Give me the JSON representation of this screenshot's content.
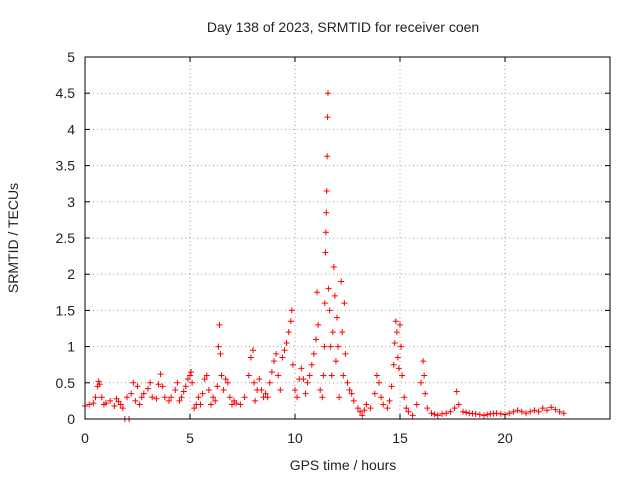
{
  "chart_data": {
    "type": "scatter",
    "title": "Day 138 of 2023, SRMTID for receiver coen",
    "xlabel": "GPS time / hours",
    "ylabel": "SRMTID / TECUs",
    "xlim": [
      0,
      25
    ],
    "ylim": [
      0,
      5
    ],
    "xticks": [
      0,
      5,
      10,
      15,
      20
    ],
    "xtick_labels": [
      "0",
      "5",
      "10",
      "15",
      "20"
    ],
    "yticks": [
      0,
      0.5,
      1,
      1.5,
      2,
      2.5,
      3,
      3.5,
      4,
      4.5,
      5
    ],
    "ytick_labels": [
      "0",
      "0.5",
      "1",
      "1.5",
      "2",
      "2.5",
      "3",
      "3.5",
      "4",
      "4.5",
      "5"
    ],
    "grid": true,
    "marker": "+",
    "color": "#ff0000",
    "series": [
      {
        "name": "SRMTID",
        "points": [
          [
            0.0,
            0.18
          ],
          [
            0.2,
            0.2
          ],
          [
            0.4,
            0.22
          ],
          [
            0.5,
            0.3
          ],
          [
            0.6,
            0.45
          ],
          [
            0.65,
            0.52
          ],
          [
            0.7,
            0.48
          ],
          [
            0.8,
            0.3
          ],
          [
            0.9,
            0.2
          ],
          [
            1.0,
            0.22
          ],
          [
            1.2,
            0.25
          ],
          [
            1.4,
            0.18
          ],
          [
            1.5,
            0.28
          ],
          [
            1.6,
            0.24
          ],
          [
            1.7,
            0.2
          ],
          [
            1.8,
            0.15
          ],
          [
            1.9,
            0.0
          ],
          [
            2.1,
            0.0
          ],
          [
            2.0,
            0.3
          ],
          [
            2.2,
            0.35
          ],
          [
            2.3,
            0.5
          ],
          [
            2.4,
            0.25
          ],
          [
            2.5,
            0.45
          ],
          [
            2.6,
            0.2
          ],
          [
            2.7,
            0.3
          ],
          [
            2.8,
            0.35
          ],
          [
            3.0,
            0.42
          ],
          [
            3.1,
            0.5
          ],
          [
            3.2,
            0.3
          ],
          [
            3.4,
            0.28
          ],
          [
            3.5,
            0.48
          ],
          [
            3.6,
            0.62
          ],
          [
            3.7,
            0.45
          ],
          [
            3.8,
            0.3
          ],
          [
            4.0,
            0.25
          ],
          [
            4.1,
            0.3
          ],
          [
            4.3,
            0.4
          ],
          [
            4.4,
            0.5
          ],
          [
            4.5,
            0.25
          ],
          [
            4.6,
            0.3
          ],
          [
            4.7,
            0.38
          ],
          [
            4.8,
            0.45
          ],
          [
            4.9,
            0.55
          ],
          [
            5.0,
            0.6
          ],
          [
            5.05,
            0.65
          ],
          [
            5.1,
            0.5
          ],
          [
            5.2,
            0.15
          ],
          [
            5.3,
            0.2
          ],
          [
            5.4,
            0.3
          ],
          [
            5.5,
            0.2
          ],
          [
            5.6,
            0.35
          ],
          [
            5.7,
            0.55
          ],
          [
            5.8,
            0.6
          ],
          [
            5.9,
            0.4
          ],
          [
            6.0,
            0.2
          ],
          [
            6.1,
            0.3
          ],
          [
            6.2,
            0.25
          ],
          [
            6.3,
            0.45
          ],
          [
            6.35,
            1.0
          ],
          [
            6.4,
            1.3
          ],
          [
            6.45,
            0.9
          ],
          [
            6.5,
            0.6
          ],
          [
            6.6,
            0.4
          ],
          [
            6.7,
            0.55
          ],
          [
            6.8,
            0.5
          ],
          [
            6.9,
            0.3
          ],
          [
            7.0,
            0.2
          ],
          [
            7.1,
            0.25
          ],
          [
            7.2,
            0.22
          ],
          [
            7.4,
            0.2
          ],
          [
            7.6,
            0.3
          ],
          [
            7.8,
            0.6
          ],
          [
            7.9,
            0.85
          ],
          [
            8.0,
            0.95
          ],
          [
            8.05,
            0.5
          ],
          [
            8.1,
            0.25
          ],
          [
            8.2,
            0.4
          ],
          [
            8.3,
            0.55
          ],
          [
            8.4,
            0.4
          ],
          [
            8.5,
            0.3
          ],
          [
            8.6,
            0.35
          ],
          [
            8.7,
            0.3
          ],
          [
            8.8,
            0.5
          ],
          [
            8.9,
            0.65
          ],
          [
            9.0,
            0.8
          ],
          [
            9.1,
            0.9
          ],
          [
            9.2,
            0.6
          ],
          [
            9.3,
            0.4
          ],
          [
            9.4,
            0.85
          ],
          [
            9.5,
            0.95
          ],
          [
            9.6,
            1.05
          ],
          [
            9.7,
            1.2
          ],
          [
            9.8,
            1.35
          ],
          [
            9.85,
            1.5
          ],
          [
            9.9,
            0.75
          ],
          [
            10.0,
            0.4
          ],
          [
            10.1,
            0.3
          ],
          [
            10.2,
            0.55
          ],
          [
            10.3,
            0.7
          ],
          [
            10.4,
            0.55
          ],
          [
            10.5,
            0.35
          ],
          [
            10.6,
            0.5
          ],
          [
            10.7,
            0.6
          ],
          [
            10.8,
            0.75
          ],
          [
            10.9,
            0.9
          ],
          [
            11.0,
            1.1
          ],
          [
            11.05,
            1.75
          ],
          [
            11.1,
            1.3
          ],
          [
            11.2,
            0.4
          ],
          [
            11.3,
            0.3
          ],
          [
            11.35,
            0.6
          ],
          [
            11.4,
            1.0
          ],
          [
            11.42,
            1.6
          ],
          [
            11.45,
            2.3
          ],
          [
            11.47,
            2.58
          ],
          [
            11.49,
            2.85
          ],
          [
            11.51,
            3.15
          ],
          [
            11.53,
            3.63
          ],
          [
            11.55,
            4.17
          ],
          [
            11.57,
            4.5
          ],
          [
            11.6,
            1.8
          ],
          [
            11.65,
            1.5
          ],
          [
            11.7,
            1.0
          ],
          [
            11.75,
            0.6
          ],
          [
            11.8,
            1.2
          ],
          [
            11.85,
            2.1
          ],
          [
            11.9,
            1.7
          ],
          [
            11.95,
            0.8
          ],
          [
            12.0,
            1.4
          ],
          [
            12.05,
            1.0
          ],
          [
            12.1,
            0.3
          ],
          [
            12.2,
            1.9
          ],
          [
            12.25,
            1.2
          ],
          [
            12.3,
            0.6
          ],
          [
            12.35,
            1.6
          ],
          [
            12.4,
            0.9
          ],
          [
            12.5,
            0.5
          ],
          [
            12.6,
            0.4
          ],
          [
            12.7,
            0.35
          ],
          [
            12.8,
            0.25
          ],
          [
            13.0,
            0.15
          ],
          [
            13.1,
            0.1
          ],
          [
            13.2,
            0.05
          ],
          [
            13.3,
            0.12
          ],
          [
            13.4,
            0.2
          ],
          [
            13.6,
            0.15
          ],
          [
            13.8,
            0.35
          ],
          [
            13.9,
            0.6
          ],
          [
            14.0,
            0.5
          ],
          [
            14.1,
            0.3
          ],
          [
            14.2,
            0.2
          ],
          [
            14.4,
            0.15
          ],
          [
            14.5,
            0.25
          ],
          [
            14.6,
            0.45
          ],
          [
            14.7,
            0.75
          ],
          [
            14.75,
            1.05
          ],
          [
            14.8,
            1.35
          ],
          [
            14.85,
            1.2
          ],
          [
            14.9,
            0.85
          ],
          [
            14.95,
            0.7
          ],
          [
            15.0,
            1.3
          ],
          [
            15.05,
            1.0
          ],
          [
            15.1,
            0.6
          ],
          [
            15.2,
            0.3
          ],
          [
            15.3,
            0.15
          ],
          [
            15.4,
            0.1
          ],
          [
            15.6,
            0.05
          ],
          [
            15.8,
            0.2
          ],
          [
            16.0,
            0.5
          ],
          [
            16.1,
            0.8
          ],
          [
            16.15,
            0.6
          ],
          [
            16.2,
            0.35
          ],
          [
            16.3,
            0.15
          ],
          [
            16.5,
            0.08
          ],
          [
            16.8,
            0.05
          ],
          [
            17.0,
            0.07
          ],
          [
            17.2,
            0.08
          ],
          [
            17.4,
            0.1
          ],
          [
            17.6,
            0.15
          ],
          [
            17.7,
            0.38
          ],
          [
            17.8,
            0.2
          ],
          [
            18.0,
            0.1
          ],
          [
            18.3,
            0.08
          ],
          [
            18.6,
            0.07
          ],
          [
            19.0,
            0.05
          ],
          [
            19.3,
            0.07
          ],
          [
            19.6,
            0.08
          ],
          [
            20.0,
            0.06
          ],
          [
            20.2,
            0.08
          ],
          [
            20.4,
            0.1
          ],
          [
            20.6,
            0.12
          ],
          [
            20.8,
            0.1
          ],
          [
            21.0,
            0.08
          ],
          [
            21.2,
            0.1
          ],
          [
            21.4,
            0.12
          ],
          [
            21.6,
            0.1
          ],
          [
            21.8,
            0.15
          ],
          [
            22.0,
            0.12
          ],
          [
            22.2,
            0.16
          ],
          [
            22.4,
            0.13
          ],
          [
            22.6,
            0.1
          ],
          [
            22.8,
            0.08
          ]
        ]
      }
    ]
  }
}
